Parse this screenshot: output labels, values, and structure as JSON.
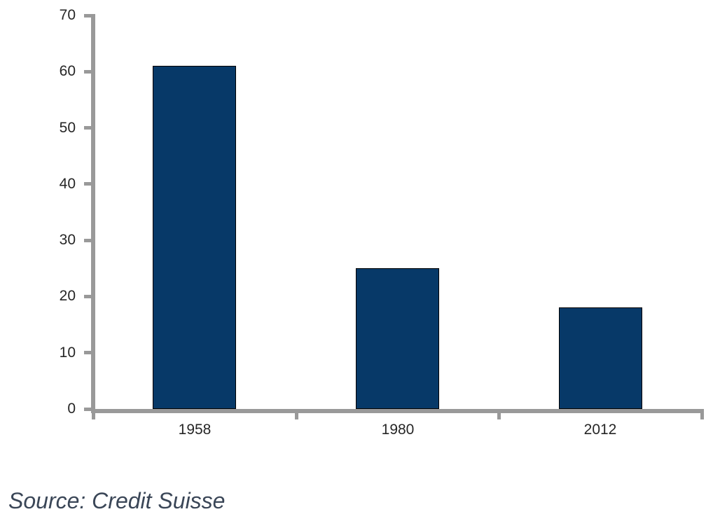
{
  "chart_data": {
    "type": "bar",
    "title": "",
    "xlabel": "",
    "ylabel": "",
    "categories": [
      "1958",
      "1980",
      "2012"
    ],
    "values": [
      61,
      25,
      18
    ],
    "ylim": [
      0,
      70
    ],
    "yticks": [
      0,
      10,
      20,
      30,
      40,
      50,
      60,
      70
    ],
    "grid": false,
    "legend_position": "none",
    "bar_color": "#073968",
    "bar_border_color": "#000000",
    "axis_color": "#999999",
    "tick_label_color": "#262626"
  },
  "source_note": "Source: Credit Suisse",
  "source_note_color": "#3a4657"
}
